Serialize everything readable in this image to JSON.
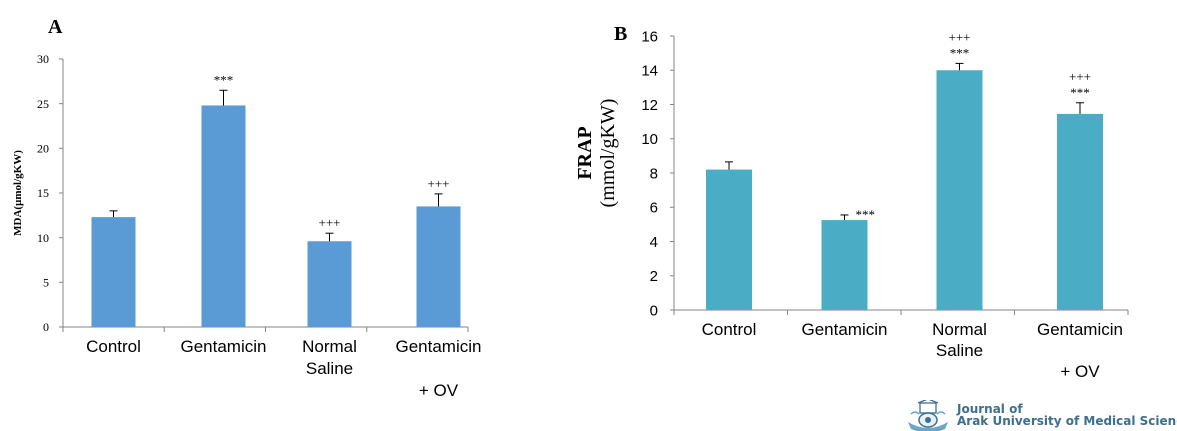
{
  "chart_data": [
    {
      "panel_label": "A",
      "type": "bar",
      "categories": [
        "Control",
        "Gentamicin",
        "Normal Saline",
        "Gentamicin + OV"
      ],
      "category_lines": [
        [
          "Control"
        ],
        [
          "Gentamicin"
        ],
        [
          "Normal",
          "Saline"
        ],
        [
          "Gentamicin",
          "",
          "+ OV"
        ]
      ],
      "values": [
        12.3,
        24.8,
        9.6,
        13.5
      ],
      "errors": [
        0.7,
        1.7,
        0.9,
        1.4
      ],
      "annotations": [
        "",
        "***",
        "+++",
        "+++"
      ],
      "ylabel": "MDA(µmol/gKW)",
      "ylim": [
        0,
        30
      ],
      "yticks": [
        0,
        5,
        10,
        15,
        20,
        25,
        30
      ],
      "color": "#5b9bd5",
      "grid": false
    },
    {
      "panel_label": "B",
      "type": "bar",
      "categories": [
        "Control",
        "Gentamicin",
        "Normal Saline",
        "Gentamicin + OV"
      ],
      "category_lines": [
        [
          "Control"
        ],
        [
          "Gentamicin"
        ],
        [
          "Normal",
          "Saline"
        ],
        [
          "Gentamicin",
          "",
          "+ OV"
        ]
      ],
      "values": [
        8.2,
        5.25,
        14.0,
        11.45
      ],
      "errors": [
        0.45,
        0.3,
        0.4,
        0.65
      ],
      "annotations": [
        "",
        "***",
        "+++\n***",
        "+++\n***"
      ],
      "ylabel_main": "FRAP",
      "ylabel_sub": "(mmol/gKW)",
      "ylim": [
        0,
        16
      ],
      "yticks": [
        0,
        2,
        4,
        6,
        8,
        10,
        12,
        14,
        16
      ],
      "color": "#4bacc6",
      "grid": false
    }
  ],
  "logo": {
    "line1": "Journal of",
    "line2": "Arak University of Medical Sciences",
    "colors": {
      "text": "#3d6f8e",
      "accent": "#e0a020"
    }
  }
}
